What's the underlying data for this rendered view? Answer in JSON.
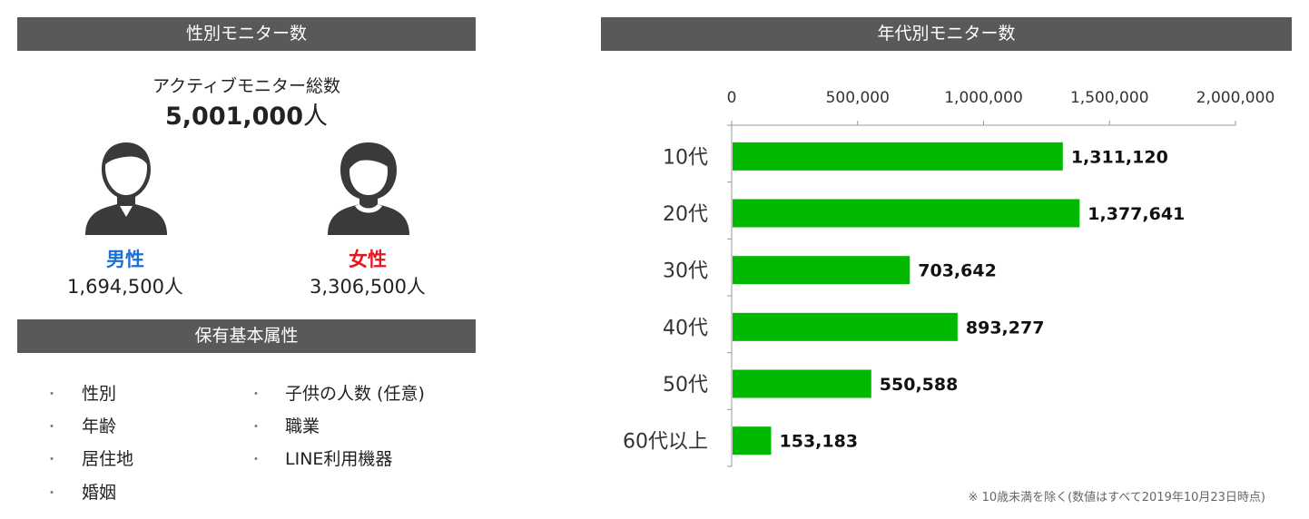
{
  "gender_panel": {
    "header": "性別モニター数",
    "total_label": "アクティブモニター総数",
    "total_value": "5,001,000",
    "unit": "人",
    "male": {
      "label": "男性",
      "value": "1,694,500人",
      "color": "#1a6fd8",
      "icon": "male-person-icon"
    },
    "female": {
      "label": "女性",
      "value": "3,306,500人",
      "color": "#e8141e",
      "icon": "female-person-icon"
    }
  },
  "attributes_panel": {
    "header": "保有基本属性",
    "left_items": [
      "性別",
      "年齢",
      "居住地",
      "婚姻"
    ],
    "right_items": [
      "子供の人数 (任意)",
      "職業",
      "LINE利用機器"
    ]
  },
  "age_panel": {
    "header": "年代別モニター数",
    "note": "※ 10歳未満を除く(数値はすべて2019年10月23日時点)"
  },
  "chart_data": {
    "type": "bar",
    "orientation": "horizontal",
    "categories": [
      "10代",
      "20代",
      "30代",
      "40代",
      "50代",
      "60代以上"
    ],
    "values": [
      1311120,
      1377641,
      703642,
      893277,
      550588,
      153183
    ],
    "value_labels": [
      "1,311,120",
      "1,377,641",
      "703,642",
      "893,277",
      "550,588",
      "153,183"
    ],
    "xlim": [
      0,
      2000000
    ],
    "x_ticks": [
      0,
      500000,
      1000000,
      1500000,
      2000000
    ],
    "x_tick_labels": [
      "0",
      "500,000",
      "1,000,000",
      "1,500,000",
      "2,000,000"
    ],
    "axis_position": "top",
    "grid": false,
    "bar_color": "#00b900"
  }
}
